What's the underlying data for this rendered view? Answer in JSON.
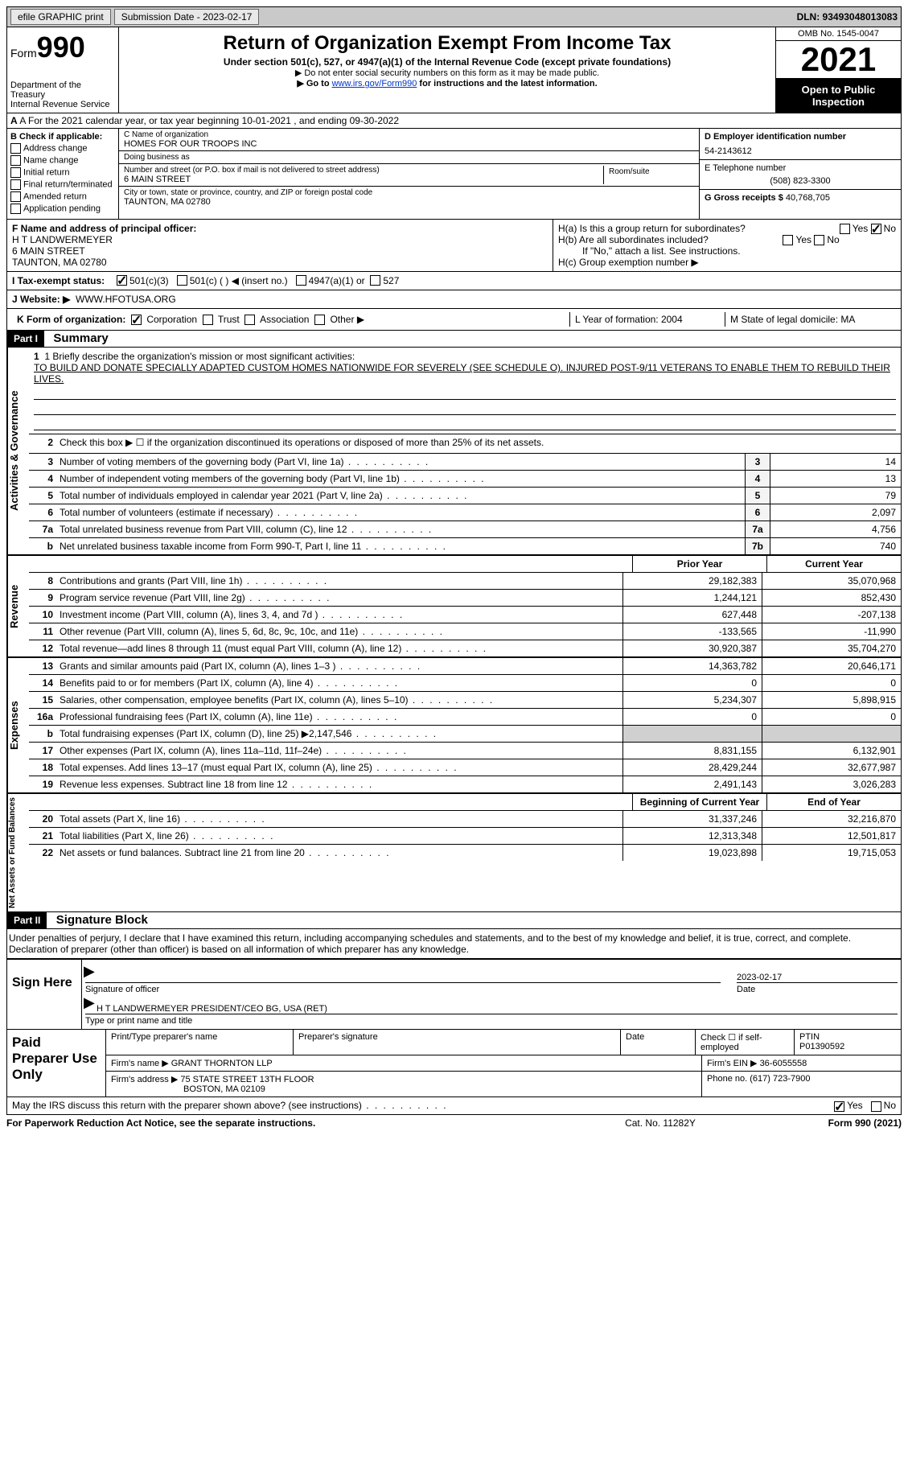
{
  "topbar": {
    "efile": "efile GRAPHIC print",
    "submission_label": "Submission Date - 2023-02-17",
    "dln": "DLN: 93493048013083"
  },
  "header": {
    "form_word": "Form",
    "form_num": "990",
    "dept": "Department of the Treasury",
    "irs": "Internal Revenue Service",
    "title": "Return of Organization Exempt From Income Tax",
    "sub": "Under section 501(c), 527, or 4947(a)(1) of the Internal Revenue Code (except private foundations)",
    "note1": "▶ Do not enter social security numbers on this form as it may be made public.",
    "note2_pre": "▶ Go to ",
    "note2_link": "www.irs.gov/Form990",
    "note2_post": " for instructions and the latest information.",
    "omb": "OMB No. 1545-0047",
    "year": "2021",
    "inspect": "Open to Public Inspection"
  },
  "lineA": "A For the 2021 calendar year, or tax year beginning 10-01-2021   , and ending 09-30-2022",
  "colB": {
    "label": "B Check if applicable:",
    "items": [
      "Address change",
      "Name change",
      "Initial return",
      "Final return/terminated",
      "Amended return",
      "Application pending"
    ]
  },
  "colC": {
    "name_label": "C Name of organization",
    "name": "HOMES FOR OUR TROOPS INC",
    "dba_label": "Doing business as",
    "dba": "",
    "addr_label": "Number and street (or P.O. box if mail is not delivered to street address)",
    "addr": "6 MAIN STREET",
    "room_label": "Room/suite",
    "city_label": "City or town, state or province, country, and ZIP or foreign postal code",
    "city": "TAUNTON, MA  02780"
  },
  "colD": {
    "ein_label": "D Employer identification number",
    "ein": "54-2143612",
    "phone_label": "E Telephone number",
    "phone": "(508) 823-3300",
    "gross_label": "G Gross receipts $",
    "gross": "40,768,705"
  },
  "boxF": {
    "label": "F Name and address of principal officer:",
    "name": "H T LANDWERMEYER",
    "addr1": "6 MAIN STREET",
    "addr2": "TAUNTON, MA  02780"
  },
  "boxH": {
    "ha": "H(a)  Is this a group return for subordinates?",
    "hb": "H(b)  Are all subordinates included?",
    "hnote": "If \"No,\" attach a list. See instructions.",
    "hc": "H(c)  Group exemption number ▶"
  },
  "status": {
    "label": "I  Tax-exempt status:",
    "o1": "501(c)(3)",
    "o2": "501(c) (  ) ◀ (insert no.)",
    "o3": "4947(a)(1) or",
    "o4": "527"
  },
  "website": {
    "label": "J  Website: ▶",
    "val": "WWW.HFOTUSA.ORG"
  },
  "korg": {
    "label": "K Form of organization:",
    "o1": "Corporation",
    "o2": "Trust",
    "o3": "Association",
    "o4": "Other ▶",
    "l": "L Year of formation: 2004",
    "m": "M State of legal domicile: MA"
  },
  "part1": {
    "hdr": "Part I",
    "title": "Summary"
  },
  "mission": {
    "q": "1  Briefly describe the organization's mission or most significant activities:",
    "text": "TO BUILD AND DONATE SPECIALLY ADAPTED CUSTOM HOMES NATIONWIDE FOR SEVERELY (SEE SCHEDULE O). INJURED POST-9/11 VETERANS TO ENABLE THEM TO REBUILD THEIR LIVES."
  },
  "lines_ag": [
    {
      "n": "2",
      "d": "Check this box ▶ ☐ if the organization discontinued its operations or disposed of more than 25% of its net assets.",
      "box": "",
      "v": ""
    },
    {
      "n": "3",
      "d": "Number of voting members of the governing body (Part VI, line 1a)",
      "box": "3",
      "v": "14"
    },
    {
      "n": "4",
      "d": "Number of independent voting members of the governing body (Part VI, line 1b)",
      "box": "4",
      "v": "13"
    },
    {
      "n": "5",
      "d": "Total number of individuals employed in calendar year 2021 (Part V, line 2a)",
      "box": "5",
      "v": "79"
    },
    {
      "n": "6",
      "d": "Total number of volunteers (estimate if necessary)",
      "box": "6",
      "v": "2,097"
    },
    {
      "n": "7a",
      "d": "Total unrelated business revenue from Part VIII, column (C), line 12",
      "box": "7a",
      "v": "4,756"
    },
    {
      "n": "b",
      "d": "Net unrelated business taxable income from Form 990-T, Part I, line 11",
      "box": "7b",
      "v": "740"
    }
  ],
  "col_hdrs": {
    "prior": "Prior Year",
    "current": "Current Year"
  },
  "revenue": [
    {
      "n": "8",
      "d": "Contributions and grants (Part VIII, line 1h)",
      "p": "29,182,383",
      "c": "35,070,968"
    },
    {
      "n": "9",
      "d": "Program service revenue (Part VIII, line 2g)",
      "p": "1,244,121",
      "c": "852,430"
    },
    {
      "n": "10",
      "d": "Investment income (Part VIII, column (A), lines 3, 4, and 7d )",
      "p": "627,448",
      "c": "-207,138"
    },
    {
      "n": "11",
      "d": "Other revenue (Part VIII, column (A), lines 5, 6d, 8c, 9c, 10c, and 11e)",
      "p": "-133,565",
      "c": "-11,990"
    },
    {
      "n": "12",
      "d": "Total revenue—add lines 8 through 11 (must equal Part VIII, column (A), line 12)",
      "p": "30,920,387",
      "c": "35,704,270"
    }
  ],
  "expenses": [
    {
      "n": "13",
      "d": "Grants and similar amounts paid (Part IX, column (A), lines 1–3 )",
      "p": "14,363,782",
      "c": "20,646,171"
    },
    {
      "n": "14",
      "d": "Benefits paid to or for members (Part IX, column (A), line 4)",
      "p": "0",
      "c": "0"
    },
    {
      "n": "15",
      "d": "Salaries, other compensation, employee benefits (Part IX, column (A), lines 5–10)",
      "p": "5,234,307",
      "c": "5,898,915"
    },
    {
      "n": "16a",
      "d": "Professional fundraising fees (Part IX, column (A), line 11e)",
      "p": "0",
      "c": "0"
    },
    {
      "n": "b",
      "d": "Total fundraising expenses (Part IX, column (D), line 25) ▶2,147,546",
      "p": "shaded",
      "c": "shaded"
    },
    {
      "n": "17",
      "d": "Other expenses (Part IX, column (A), lines 11a–11d, 11f–24e)",
      "p": "8,831,155",
      "c": "6,132,901"
    },
    {
      "n": "18",
      "d": "Total expenses. Add lines 13–17 (must equal Part IX, column (A), line 25)",
      "p": "28,429,244",
      "c": "32,677,987"
    },
    {
      "n": "19",
      "d": "Revenue less expenses. Subtract line 18 from line 12",
      "p": "2,491,143",
      "c": "3,026,283"
    }
  ],
  "net_hdrs": {
    "begin": "Beginning of Current Year",
    "end": "End of Year"
  },
  "net": [
    {
      "n": "20",
      "d": "Total assets (Part X, line 16)",
      "p": "31,337,246",
      "c": "32,216,870"
    },
    {
      "n": "21",
      "d": "Total liabilities (Part X, line 26)",
      "p": "12,313,348",
      "c": "12,501,817"
    },
    {
      "n": "22",
      "d": "Net assets or fund balances. Subtract line 21 from line 20",
      "p": "19,023,898",
      "c": "19,715,053"
    }
  ],
  "part2": {
    "hdr": "Part II",
    "title": "Signature Block"
  },
  "penalty": "Under penalties of perjury, I declare that I have examined this return, including accompanying schedules and statements, and to the best of my knowledge and belief, it is true, correct, and complete. Declaration of preparer (other than officer) is based on all information of which preparer has any knowledge.",
  "sign": {
    "here": "Sign Here",
    "sig_label": "Signature of officer",
    "date": "2023-02-17",
    "date_label": "Date",
    "name": "H T LANDWERMEYER  PRESIDENT/CEO BG, USA (RET)",
    "name_label": "Type or print name and title"
  },
  "prep": {
    "title": "Paid Preparer Use Only",
    "r1": {
      "a": "Print/Type preparer's name",
      "b": "Preparer's signature",
      "c": "Date",
      "d": "Check ☐ if self-employed",
      "e": "PTIN",
      "ev": "P01390592"
    },
    "r2": {
      "a": "Firm's name    ▶",
      "av": "GRANT THORNTON LLP",
      "b": "Firm's EIN ▶",
      "bv": "36-6055558"
    },
    "r3": {
      "a": "Firm's address ▶",
      "av": "75 STATE STREET 13TH FLOOR",
      "av2": "BOSTON, MA  02109",
      "b": "Phone no.",
      "bv": "(617) 723-7900"
    }
  },
  "discuss": "May the IRS discuss this return with the preparer shown above? (see instructions)",
  "yes": "Yes",
  "no": "No",
  "footer": {
    "left": "For Paperwork Reduction Act Notice, see the separate instructions.",
    "mid": "Cat. No. 11282Y",
    "right": "Form 990 (2021)"
  },
  "side_labels": {
    "ag": "Activities & Governance",
    "rev": "Revenue",
    "exp": "Expenses",
    "net": "Net Assets or Fund Balances"
  }
}
